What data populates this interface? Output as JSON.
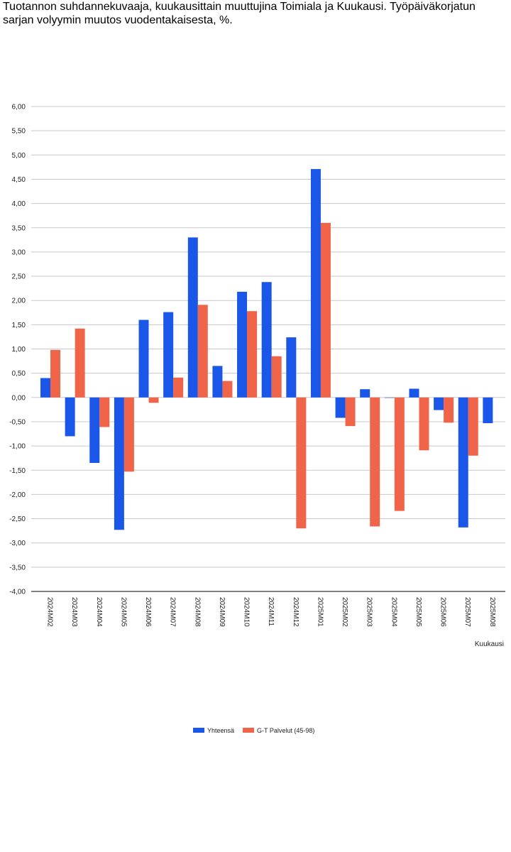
{
  "page": {
    "title": "Tuotannon suhdannekuvaaja, kuukausittain muuttujina Toimiala ja Kuukausi. Työpäiväkorjatun sarjan volyymin muutos vuodentakaisesta, %."
  },
  "chart_data": {
    "type": "bar",
    "title": "Tuotannon suhdannekuvaaja, kuukausittain muuttujina Toimiala ja Kuukausi. Työpäiväkorjatun sarjan volyymin muutos vuodentakaisesta, %.",
    "xlabel": "Kuukausi",
    "ylabel": "",
    "ylim": [
      -4.0,
      6.0
    ],
    "ytick_step": 0.5,
    "yticks": [
      "6,00",
      "5,50",
      "5,00",
      "4,50",
      "4,00",
      "3,50",
      "3,00",
      "2,50",
      "2,00",
      "1,50",
      "1,00",
      "0,50",
      "0,00",
      "-0,50",
      "-1,00",
      "-1,50",
      "-2,00",
      "-2,50",
      "-3,00",
      "-3,50",
      "-4,00"
    ],
    "grid": true,
    "legend_position": "bottom",
    "categories": [
      "2024M02",
      "2024M03",
      "2024M04",
      "2024M05",
      "2024M06",
      "2024M07",
      "2024M08",
      "2024M09",
      "2024M10",
      "2024M11",
      "2024M12",
      "2025M01",
      "2025M02",
      "2025M03",
      "2025M04",
      "2025M05",
      "2025M06",
      "2025M07",
      "2025M08"
    ],
    "series": [
      {
        "name": "Yhteensä",
        "color": "#1a56e8",
        "values": [
          0.4,
          -0.8,
          -1.35,
          -2.73,
          1.6,
          1.76,
          3.3,
          0.65,
          2.18,
          2.38,
          1.24,
          4.71,
          -0.42,
          0.17,
          0.0,
          0.18,
          -0.26,
          -2.68,
          -0.53
        ]
      },
      {
        "name": "G-T Palvelut (45-98)",
        "color": "#f0644a",
        "values": [
          0.98,
          1.42,
          -0.61,
          -1.53,
          -0.11,
          0.41,
          1.91,
          0.34,
          1.78,
          0.85,
          -2.7,
          3.6,
          -0.59,
          -2.66,
          -2.34,
          -1.09,
          -0.52,
          -1.2,
          null
        ]
      }
    ]
  }
}
